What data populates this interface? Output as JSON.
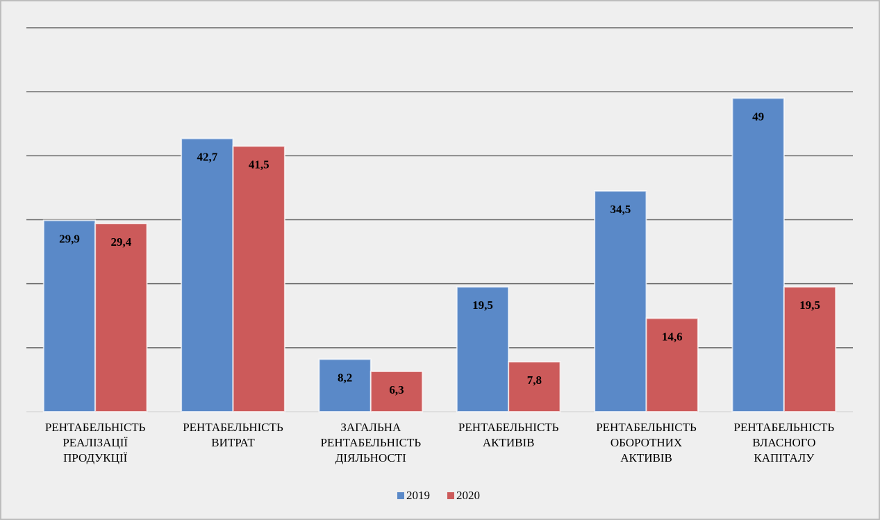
{
  "chart_data": {
    "type": "bar",
    "categories": [
      "РЕНТАБЕЛЬНІСТЬ РЕАЛІЗАЦІЇ ПРОДУКЦІЇ",
      "РЕНТАБЕЛЬНІСТЬ ВИТРАТ",
      "ЗАГАЛЬНА РЕНТАБЕЛЬНІСТЬ ДІЯЛЬНОСТІ",
      "РЕНТАБЕЛЬНІСТЬ АКТИВІВ",
      "РЕНТАБЕЛЬНІСТЬ ОБОРОТНИХ АКТИВІВ",
      "РЕНТАБЕЛЬНІСТЬ ВЛАСНОГО КАПІТАЛУ"
    ],
    "series": [
      {
        "name": "2019",
        "color": "#5a89c8",
        "values": [
          29.9,
          42.7,
          8.2,
          19.5,
          34.5,
          49
        ],
        "value_labels": [
          "29,9",
          "42,7",
          "8,2",
          "19,5",
          "34,5",
          "49"
        ]
      },
      {
        "name": "2020",
        "color": "#cc5a5a",
        "values": [
          29.4,
          41.5,
          6.3,
          7.8,
          14.6,
          19.5
        ],
        "value_labels": [
          "29,4",
          "41,5",
          "6,3",
          "7,8",
          "14,6",
          "19,5"
        ]
      }
    ],
    "ylim": [
      0,
      60
    ],
    "yticks": [
      0,
      10,
      20,
      30,
      40,
      50,
      60
    ],
    "grid": true,
    "legend": "bottom"
  }
}
